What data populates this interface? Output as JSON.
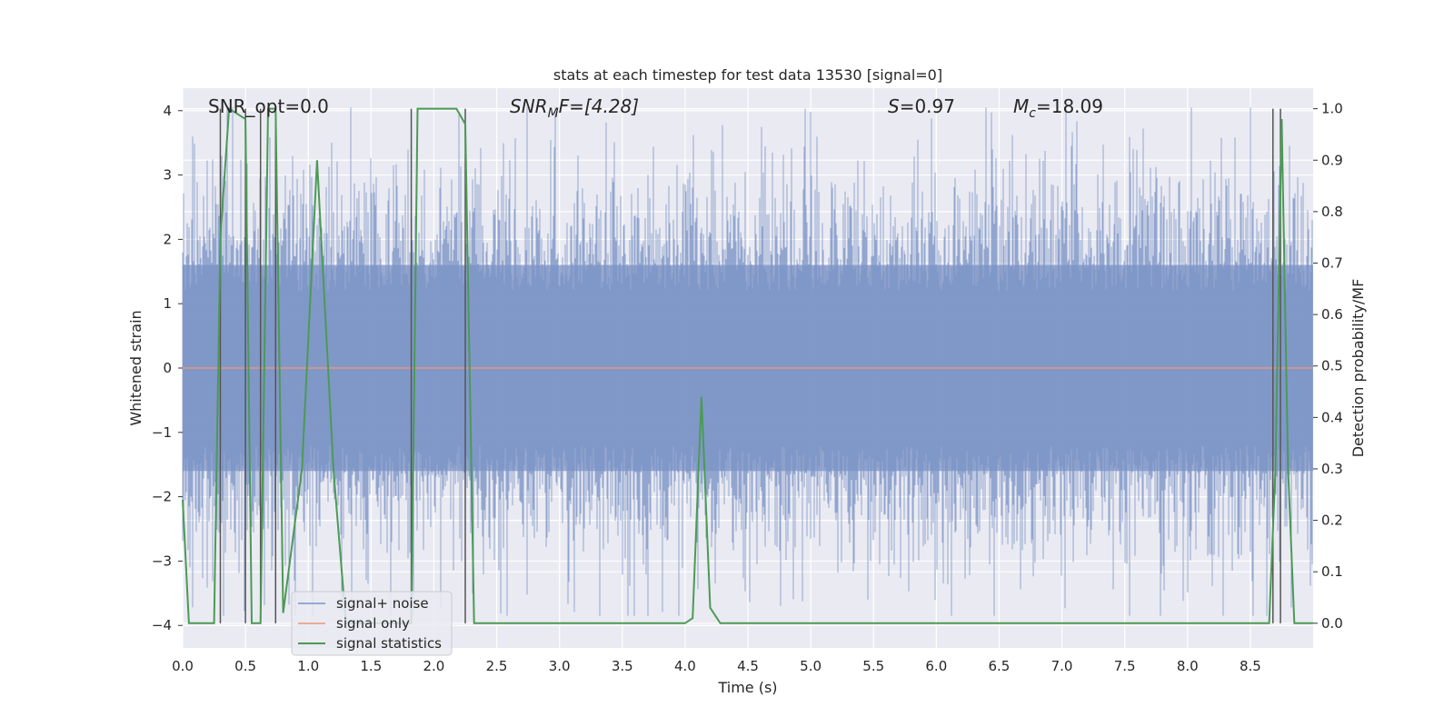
{
  "chart_data": {
    "type": "line",
    "title": "stats at each timestep for test data 13530 [signal=0]",
    "xlabel": "Time (s)",
    "ylabel": "Whitened strain",
    "y2label": "Detection probability/MF",
    "xlim": [
      0.0,
      9.0
    ],
    "ylim": [
      -4.35,
      4.35
    ],
    "y2lim": [
      -0.048,
      1.04
    ],
    "xticks": [
      "0.0",
      "0.5",
      "1.0",
      "1.5",
      "2.0",
      "2.5",
      "3.0",
      "3.5",
      "4.0",
      "4.5",
      "5.0",
      "5.5",
      "6.0",
      "6.5",
      "7.0",
      "7.5",
      "8.0",
      "8.5"
    ],
    "yticks": [
      "4",
      "3",
      "2",
      "1",
      "0",
      "−1",
      "−2",
      "−3",
      "−4"
    ],
    "y2ticks": [
      "1.0",
      "0.9",
      "0.8",
      "0.7",
      "0.6",
      "0.5",
      "0.4",
      "0.3",
      "0.2",
      "0.1",
      "0.0"
    ],
    "grid": true,
    "legend_position": "lower-left",
    "annotations": {
      "snr_opt": "SNR_opt=0.0",
      "snr_mf_label": "SNR",
      "snr_mf_sub": "M",
      "snr_mf_rest": "F=[4.28]",
      "s_label": "S",
      "s_value": "=0.97",
      "mc_label": "M",
      "mc_sub": "c",
      "mc_value": "=18.09"
    },
    "series": [
      {
        "name": "signal+ noise",
        "color": "#7b93c5",
        "envelope_y": [
          -1.6,
          1.6
        ],
        "noise_sigma": 0.8
      },
      {
        "name": "signal only",
        "color": "#e8957c",
        "constant_y": 0.0
      },
      {
        "name": "signal statistics",
        "color": "#4c9a55",
        "axis": "right",
        "x": [
          0.0,
          0.05,
          0.25,
          0.3,
          0.37,
          0.5,
          0.55,
          0.62,
          0.68,
          0.74,
          0.8,
          0.95,
          1.07,
          1.2,
          1.3,
          1.82,
          1.87,
          2.18,
          2.25,
          2.32,
          4.0,
          4.06,
          4.13,
          4.2,
          4.28,
          8.65,
          8.7,
          8.75,
          8.8,
          8.85,
          9.0
        ],
        "y": [
          0.24,
          0.0,
          0.0,
          0.75,
          1.0,
          0.98,
          0.0,
          0.0,
          1.0,
          1.0,
          0.02,
          0.3,
          0.9,
          0.3,
          0.0,
          0.0,
          1.0,
          1.0,
          0.97,
          0.0,
          0.0,
          0.01,
          0.44,
          0.03,
          0.0,
          0.0,
          0.3,
          0.98,
          0.3,
          0.0,
          0.0
        ]
      }
    ],
    "vlines": [
      0.3,
      0.5,
      0.62,
      0.74,
      1.82,
      2.25,
      8.68,
      8.74
    ]
  }
}
